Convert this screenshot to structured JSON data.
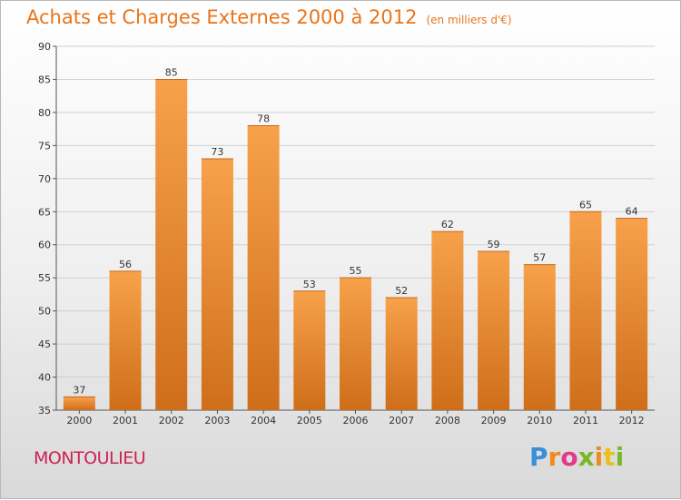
{
  "header": {
    "title": "Achats et Charges Externes 2000 à 2012",
    "subtitle": "(en milliers d'€)"
  },
  "footer": {
    "commune": "MONTOULIEU",
    "logo": "Proxiti"
  },
  "colors": {
    "bar_light": "#f7a14a",
    "bar_dark": "#cf6e1a",
    "title": "#e8741a",
    "commune": "#cc2255"
  },
  "chart_data": {
    "type": "bar",
    "title": "Achats et Charges Externes 2000 à 2012",
    "subtitle": "(en milliers d'€)",
    "categories": [
      "2000",
      "2001",
      "2002",
      "2003",
      "2004",
      "2005",
      "2006",
      "2007",
      "2008",
      "2009",
      "2010",
      "2011",
      "2012"
    ],
    "values": [
      37,
      56,
      85,
      73,
      78,
      53,
      55,
      52,
      62,
      59,
      57,
      65,
      64
    ],
    "ylim": [
      35,
      90
    ],
    "yticks": [
      35,
      40,
      45,
      50,
      55,
      60,
      65,
      70,
      75,
      80,
      85,
      90
    ],
    "grid": true,
    "legend": "none"
  }
}
